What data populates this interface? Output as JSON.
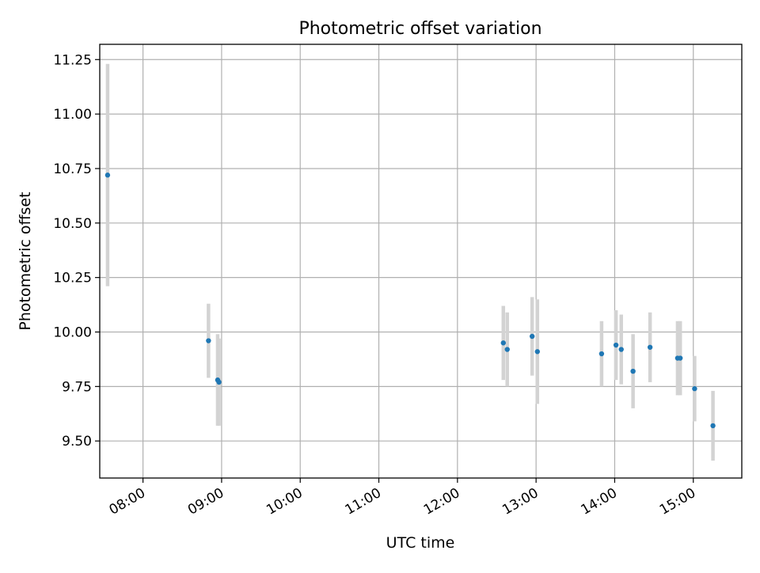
{
  "chart_data": {
    "type": "scatter",
    "title": "Photometric offset variation",
    "xlabel": "UTC time",
    "ylabel": "Photometric offset",
    "x_axis_format": "HH:MM",
    "xlim": [
      "07:27",
      "15:37"
    ],
    "ylim": [
      9.33,
      11.32
    ],
    "x_ticks": [
      "08:00",
      "09:00",
      "10:00",
      "11:00",
      "12:00",
      "13:00",
      "14:00",
      "15:00"
    ],
    "y_ticks": [
      9.5,
      9.75,
      10.0,
      10.25,
      10.5,
      10.75,
      11.0,
      11.25
    ],
    "y_tick_labels": [
      "9.50",
      "9.75",
      "10.00",
      "10.25",
      "10.50",
      "10.75",
      "11.00",
      "11.25"
    ],
    "grid": true,
    "point_color": "#1f77b4",
    "errorbar_color": "#d3d3d3",
    "series": [
      {
        "points": [
          {
            "x": "07:33",
            "y": 10.72,
            "err": 0.51
          },
          {
            "x": "08:50",
            "y": 9.96,
            "err": 0.17
          },
          {
            "x": "08:57",
            "y": 9.78,
            "err": 0.21
          },
          {
            "x": "08:58",
            "y": 9.77,
            "err": 0.2
          },
          {
            "x": "12:35",
            "y": 9.95,
            "err": 0.17
          },
          {
            "x": "12:38",
            "y": 9.92,
            "err": 0.17
          },
          {
            "x": "12:57",
            "y": 9.98,
            "err": 0.18
          },
          {
            "x": "13:01",
            "y": 9.91,
            "err": 0.24
          },
          {
            "x": "13:50",
            "y": 9.9,
            "err": 0.15
          },
          {
            "x": "14:01",
            "y": 9.94,
            "err": 0.16
          },
          {
            "x": "14:05",
            "y": 9.92,
            "err": 0.16
          },
          {
            "x": "14:14",
            "y": 9.82,
            "err": 0.17
          },
          {
            "x": "14:27",
            "y": 9.93,
            "err": 0.16
          },
          {
            "x": "14:48",
            "y": 9.88,
            "err": 0.17
          },
          {
            "x": "14:50",
            "y": 9.88,
            "err": 0.17
          },
          {
            "x": "15:01",
            "y": 9.74,
            "err": 0.15
          },
          {
            "x": "15:15",
            "y": 9.57,
            "err": 0.16
          }
        ]
      }
    ]
  }
}
